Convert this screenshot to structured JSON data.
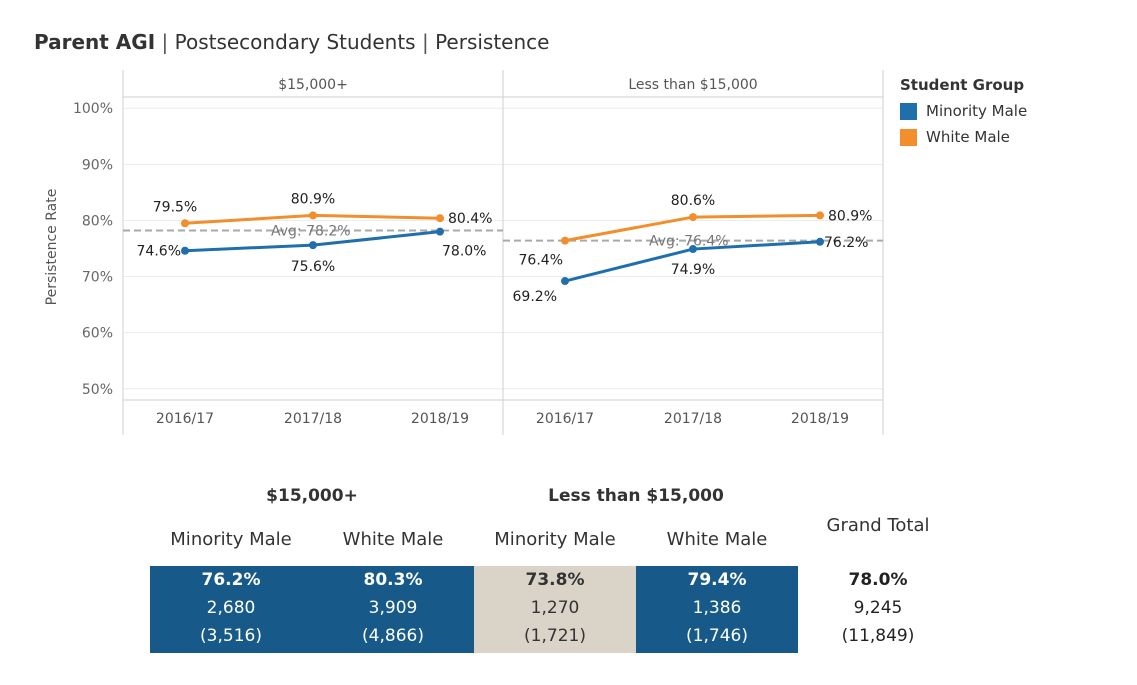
{
  "title": {
    "part1": "Parent AGI",
    "sep1": " | ",
    "part2": "Postsecondary Students",
    "sep2": " | ",
    "part3": "Persistence"
  },
  "chart_data": {
    "type": "line",
    "ylabel": "Persistence Rate",
    "ylim": [
      48,
      102
    ],
    "yticks": [
      50,
      60,
      70,
      80,
      90,
      100
    ],
    "ytick_labels": [
      "50%",
      "60%",
      "70%",
      "80%",
      "90%",
      "100%"
    ],
    "categories": [
      "2016/17",
      "2017/18",
      "2018/19"
    ],
    "grid": true,
    "legend_position": "right",
    "panels": [
      {
        "label": "$15,000+",
        "series": [
          {
            "name": "Minority Male",
            "color": "#1f6fad",
            "values": [
              74.6,
              75.6,
              78.0
            ],
            "labels": [
              "74.6%",
              "75.6%",
              "78.0%"
            ]
          },
          {
            "name": "White Male",
            "color": "#f28e2b",
            "values": [
              79.5,
              80.9,
              80.4
            ],
            "labels": [
              "79.5%",
              "80.9%",
              "80.4%"
            ]
          }
        ],
        "avg": {
          "value": 78.2,
          "label": "Avg: 78.2%"
        }
      },
      {
        "label": "Less than $15,000",
        "series": [
          {
            "name": "Minority Male",
            "color": "#1f6fad",
            "values": [
              69.2,
              74.9,
              76.2
            ],
            "labels": [
              "69.2%",
              "74.9%",
              "76.2%"
            ]
          },
          {
            "name": "White Male",
            "color": "#f28e2b",
            "values": [
              76.4,
              80.6,
              80.9
            ],
            "labels": [
              "76.4%",
              "80.6%",
              "80.9%"
            ]
          }
        ],
        "avg": {
          "value": 76.4,
          "label": "Avg: 76.4%"
        }
      }
    ]
  },
  "legend": {
    "title": "Student Group",
    "items": [
      {
        "label": "Minority Male",
        "color": "#1f6fad"
      },
      {
        "label": "White Male",
        "color": "#f28e2b"
      }
    ]
  },
  "table": {
    "groups": [
      {
        "label": "$15,000+"
      },
      {
        "label": "Less than $15,000"
      }
    ],
    "grand_total_label": "Grand Total",
    "columns": [
      {
        "label": "Minority Male",
        "rate": "76.2%",
        "count": "2,680",
        "total": "(3,516)",
        "bg": "#175a8a",
        "fg": "#ffffff"
      },
      {
        "label": "White Male",
        "rate": "80.3%",
        "count": "3,909",
        "total": "(4,866)",
        "bg": "#175a8a",
        "fg": "#ffffff"
      },
      {
        "label": "Minority Male",
        "rate": "73.8%",
        "count": "1,270",
        "total": "(1,721)",
        "bg": "#dad4c8",
        "fg": "#333333"
      },
      {
        "label": "White Male",
        "rate": "79.4%",
        "count": "1,386",
        "total": "(1,746)",
        "bg": "#175a8a",
        "fg": "#ffffff"
      }
    ],
    "grand_total": {
      "rate": "78.0%",
      "count": "9,245",
      "total": "(11,849)"
    }
  }
}
